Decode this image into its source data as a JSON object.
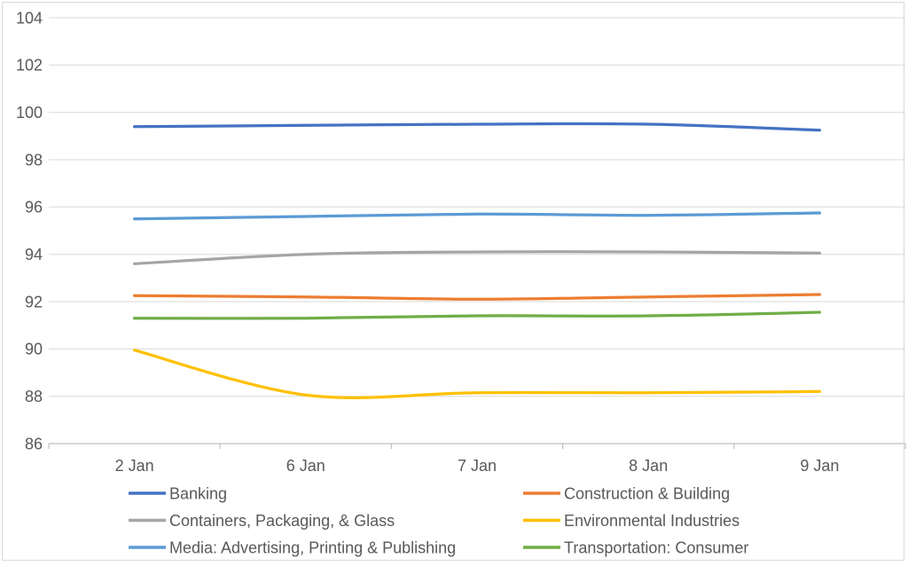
{
  "chart_data": {
    "type": "line",
    "smoothed": true,
    "title": "",
    "xlabel": "",
    "ylabel": "",
    "categories": [
      "2 Jan",
      "6 Jan",
      "7 Jan",
      "8 Jan",
      "9 Jan"
    ],
    "series": [
      {
        "name": "Banking",
        "color": "#4472C4",
        "values": [
          99.4,
          99.45,
          99.5,
          99.5,
          99.25
        ]
      },
      {
        "name": "Construction & Building",
        "color": "#ED7D31",
        "values": [
          92.25,
          92.2,
          92.1,
          92.2,
          92.3
        ]
      },
      {
        "name": "Containers, Packaging, & Glass",
        "color": "#A5A5A5",
        "values": [
          93.6,
          94.0,
          94.1,
          94.1,
          94.05
        ]
      },
      {
        "name": "Environmental Industries",
        "color": "#FFC000",
        "values": [
          89.95,
          88.05,
          88.15,
          88.15,
          88.2
        ]
      },
      {
        "name": "Media: Advertising, Printing & Publishing",
        "color": "#5B9BD5",
        "values": [
          95.5,
          95.6,
          95.7,
          95.65,
          95.75
        ]
      },
      {
        "name": "Transportation: Consumer",
        "color": "#70AD47",
        "values": [
          91.3,
          91.3,
          91.4,
          91.4,
          91.55
        ]
      }
    ],
    "ylim": [
      86,
      104
    ],
    "ytick_step": 2,
    "ytick_labels": [
      "86",
      "88",
      "90",
      "92",
      "94",
      "96",
      "98",
      "100",
      "102",
      "104"
    ],
    "grid": "horizontal",
    "legend_position": "bottom, two columns, three rows",
    "colors": {
      "grid_line": "#D9D9D9",
      "axis_line": "#BFBFBF",
      "text": "#595959",
      "chart_border": "#D9D9D9",
      "background": "#FFFFFF"
    }
  }
}
